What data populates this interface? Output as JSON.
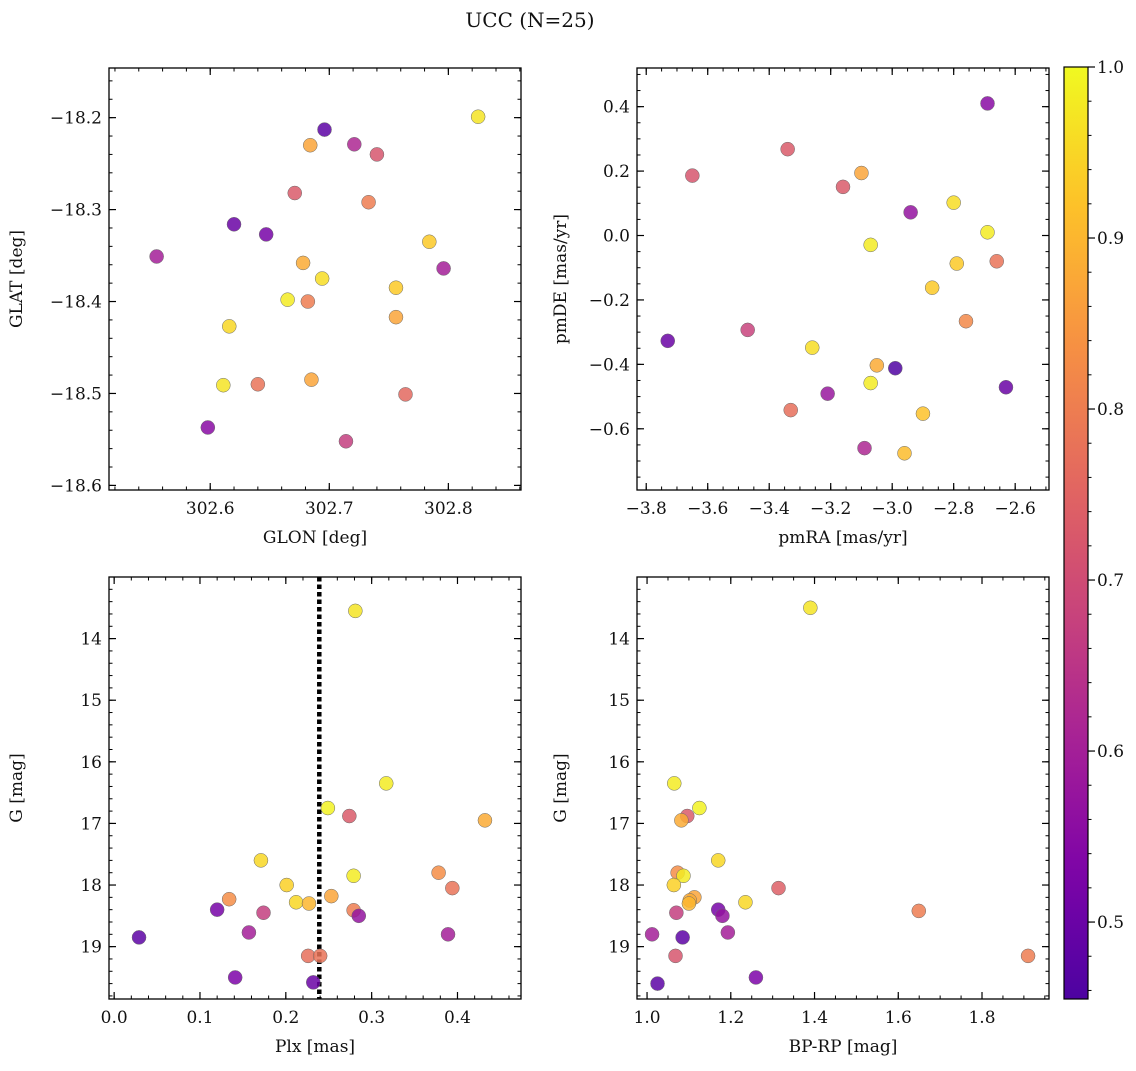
{
  "figure": {
    "title": "UCC (N=25)"
  },
  "colorbar": {
    "min": 0.455,
    "max": 1.0,
    "ticks": [
      0.5,
      0.6,
      0.7,
      0.8,
      0.9,
      1.0
    ],
    "tick_labels": [
      "0.5",
      "0.6",
      "0.7",
      "0.8",
      "0.9",
      "1.0"
    ],
    "colormap": "plasma"
  },
  "chart_data": [
    {
      "id": "glon-glat",
      "type": "scatter",
      "xlabel": "GLON [deg]",
      "ylabel": "GLAT [deg]",
      "xlim": [
        302.515,
        302.861
      ],
      "ylim": [
        -18.605,
        -18.146
      ],
      "xticks": [
        302.6,
        302.7,
        302.8
      ],
      "xtick_labels": [
        "302.6",
        "302.7",
        "302.8"
      ],
      "yticks": [
        -18.6,
        -18.5,
        -18.4,
        -18.3,
        -18.2
      ],
      "ytick_labels": [
        "−18.6",
        "−18.5",
        "−18.4",
        "−18.3",
        "−18.2"
      ],
      "x_minor_step": 0.02,
      "y_minor_step": 0.02,
      "invert_y": false,
      "points": [
        {
          "x": 302.825,
          "y": -18.199,
          "c": 0.97
        },
        {
          "x": 302.696,
          "y": -18.213,
          "c": 0.48
        },
        {
          "x": 302.721,
          "y": -18.229,
          "c": 0.62
        },
        {
          "x": 302.684,
          "y": -18.23,
          "c": 0.87
        },
        {
          "x": 302.74,
          "y": -18.24,
          "c": 0.72
        },
        {
          "x": 302.671,
          "y": -18.282,
          "c": 0.73
        },
        {
          "x": 302.733,
          "y": -18.292,
          "c": 0.8
        },
        {
          "x": 302.62,
          "y": -18.316,
          "c": 0.5
        },
        {
          "x": 302.647,
          "y": -18.327,
          "c": 0.52
        },
        {
          "x": 302.784,
          "y": -18.335,
          "c": 0.93
        },
        {
          "x": 302.555,
          "y": -18.351,
          "c": 0.6
        },
        {
          "x": 302.678,
          "y": -18.358,
          "c": 0.88
        },
        {
          "x": 302.796,
          "y": -18.364,
          "c": 0.6
        },
        {
          "x": 302.694,
          "y": -18.375,
          "c": 0.96
        },
        {
          "x": 302.756,
          "y": -18.385,
          "c": 0.93
        },
        {
          "x": 302.665,
          "y": -18.398,
          "c": 0.98
        },
        {
          "x": 302.682,
          "y": -18.4,
          "c": 0.8
        },
        {
          "x": 302.756,
          "y": -18.417,
          "c": 0.87
        },
        {
          "x": 302.616,
          "y": -18.427,
          "c": 0.95
        },
        {
          "x": 302.685,
          "y": -18.485,
          "c": 0.87
        },
        {
          "x": 302.64,
          "y": -18.49,
          "c": 0.78
        },
        {
          "x": 302.611,
          "y": -18.491,
          "c": 0.97
        },
        {
          "x": 302.764,
          "y": -18.501,
          "c": 0.76
        },
        {
          "x": 302.598,
          "y": -18.537,
          "c": 0.55
        },
        {
          "x": 302.714,
          "y": -18.552,
          "c": 0.67
        }
      ]
    },
    {
      "id": "pmra-pmde",
      "type": "scatter",
      "xlabel": "pmRA [mas/yr]",
      "ylabel": "pmDE [mas/yr]",
      "xlim": [
        -3.83,
        -2.49
      ],
      "ylim": [
        -0.79,
        0.52
      ],
      "xticks": [
        -3.8,
        -3.6,
        -3.4,
        -3.2,
        -3.0,
        -2.8,
        -2.6
      ],
      "xtick_labels": [
        "−3.8",
        "−3.6",
        "−3.4",
        "−3.2",
        "−3.0",
        "−2.8",
        "−2.6"
      ],
      "yticks": [
        -0.6,
        -0.4,
        -0.2,
        0.0,
        0.2,
        0.4
      ],
      "ytick_labels": [
        "−0.6",
        "−0.4",
        "−0.2",
        "0.0",
        "0.2",
        "0.4"
      ],
      "x_minor_step": 0.05,
      "y_minor_step": 0.05,
      "invert_y": false,
      "points": [
        {
          "x": -2.69,
          "y": 0.41,
          "c": 0.55
        },
        {
          "x": -3.34,
          "y": 0.268,
          "c": 0.73
        },
        {
          "x": -3.1,
          "y": 0.194,
          "c": 0.87
        },
        {
          "x": -3.65,
          "y": 0.186,
          "c": 0.72
        },
        {
          "x": -3.16,
          "y": 0.151,
          "c": 0.73
        },
        {
          "x": -2.8,
          "y": 0.102,
          "c": 0.96
        },
        {
          "x": -2.94,
          "y": 0.072,
          "c": 0.57
        },
        {
          "x": -2.69,
          "y": 0.01,
          "c": 0.98
        },
        {
          "x": -3.07,
          "y": -0.029,
          "c": 0.98
        },
        {
          "x": -2.66,
          "y": -0.08,
          "c": 0.78
        },
        {
          "x": -2.79,
          "y": -0.087,
          "c": 0.93
        },
        {
          "x": -2.87,
          "y": -0.162,
          "c": 0.93
        },
        {
          "x": -2.76,
          "y": -0.266,
          "c": 0.82
        },
        {
          "x": -3.47,
          "y": -0.293,
          "c": 0.68
        },
        {
          "x": -3.73,
          "y": -0.327,
          "c": 0.5
        },
        {
          "x": -3.26,
          "y": -0.348,
          "c": 0.96
        },
        {
          "x": -3.05,
          "y": -0.403,
          "c": 0.88
        },
        {
          "x": -2.99,
          "y": -0.412,
          "c": 0.46
        },
        {
          "x": -3.07,
          "y": -0.458,
          "c": 0.98
        },
        {
          "x": -2.63,
          "y": -0.471,
          "c": 0.5
        },
        {
          "x": -3.21,
          "y": -0.491,
          "c": 0.58
        },
        {
          "x": -3.33,
          "y": -0.542,
          "c": 0.77
        },
        {
          "x": -2.9,
          "y": -0.553,
          "c": 0.92
        },
        {
          "x": -3.09,
          "y": -0.66,
          "c": 0.62
        },
        {
          "x": -2.96,
          "y": -0.676,
          "c": 0.91
        }
      ]
    },
    {
      "id": "plx-g",
      "type": "scatter",
      "xlabel": "Plx [mas]",
      "ylabel": "G [mag]",
      "xlim": [
        -0.006,
        0.474
      ],
      "ylim": [
        19.85,
        13.0
      ],
      "xticks": [
        0.0,
        0.1,
        0.2,
        0.3,
        0.4
      ],
      "xtick_labels": [
        "0.0",
        "0.1",
        "0.2",
        "0.3",
        "0.4"
      ],
      "yticks": [
        14,
        15,
        16,
        17,
        18,
        19
      ],
      "ytick_labels": [
        "14",
        "15",
        "16",
        "17",
        "18",
        "19"
      ],
      "x_minor_step": 0.02,
      "y_minor_step": 0.2,
      "invert_y": true,
      "vline": {
        "x": 0.239,
        "style": "dotted"
      },
      "points": [
        {
          "x": 0.281,
          "y": 13.55,
          "c": 0.97
        },
        {
          "x": 0.317,
          "y": 16.35,
          "c": 0.98
        },
        {
          "x": 0.249,
          "y": 16.75,
          "c": 0.99
        },
        {
          "x": 0.274,
          "y": 16.88,
          "c": 0.73
        },
        {
          "x": 0.432,
          "y": 16.95,
          "c": 0.88
        },
        {
          "x": 0.171,
          "y": 17.6,
          "c": 0.95
        },
        {
          "x": 0.378,
          "y": 17.8,
          "c": 0.83
        },
        {
          "x": 0.279,
          "y": 17.85,
          "c": 0.98
        },
        {
          "x": 0.201,
          "y": 18.0,
          "c": 0.94
        },
        {
          "x": 0.394,
          "y": 18.05,
          "c": 0.78
        },
        {
          "x": 0.253,
          "y": 18.18,
          "c": 0.87
        },
        {
          "x": 0.134,
          "y": 18.23,
          "c": 0.83
        },
        {
          "x": 0.212,
          "y": 18.28,
          "c": 0.95
        },
        {
          "x": 0.227,
          "y": 18.3,
          "c": 0.9
        },
        {
          "x": 0.12,
          "y": 18.4,
          "c": 0.52
        },
        {
          "x": 0.279,
          "y": 18.41,
          "c": 0.8
        },
        {
          "x": 0.174,
          "y": 18.45,
          "c": 0.67
        },
        {
          "x": 0.285,
          "y": 18.5,
          "c": 0.57
        },
        {
          "x": 0.157,
          "y": 18.77,
          "c": 0.6
        },
        {
          "x": 0.389,
          "y": 18.8,
          "c": 0.6
        },
        {
          "x": 0.029,
          "y": 18.85,
          "c": 0.48
        },
        {
          "x": 0.226,
          "y": 19.15,
          "c": 0.77
        },
        {
          "x": 0.24,
          "y": 19.15,
          "c": 0.78
        },
        {
          "x": 0.141,
          "y": 19.5,
          "c": 0.53
        },
        {
          "x": 0.232,
          "y": 19.58,
          "c": 0.5
        }
      ]
    },
    {
      "id": "bprp-g",
      "type": "scatter",
      "xlabel": "BP-RP [mag]",
      "ylabel": "G [mag]",
      "xlim": [
        0.976,
        1.96
      ],
      "ylim": [
        19.85,
        13.0
      ],
      "xticks": [
        1.0,
        1.2,
        1.4,
        1.6,
        1.8
      ],
      "xtick_labels": [
        "1.0",
        "1.2",
        "1.4",
        "1.6",
        "1.8"
      ],
      "yticks": [
        14,
        15,
        16,
        17,
        18,
        19
      ],
      "ytick_labels": [
        "14",
        "15",
        "16",
        "17",
        "18",
        "19"
      ],
      "x_minor_step": 0.05,
      "y_minor_step": 0.2,
      "invert_y": true,
      "points": [
        {
          "x": 1.39,
          "y": 13.5,
          "c": 0.97
        },
        {
          "x": 1.065,
          "y": 16.35,
          "c": 0.98
        },
        {
          "x": 1.125,
          "y": 16.75,
          "c": 0.99
        },
        {
          "x": 1.096,
          "y": 16.88,
          "c": 0.73
        },
        {
          "x": 1.082,
          "y": 16.95,
          "c": 0.88
        },
        {
          "x": 1.17,
          "y": 17.6,
          "c": 0.95
        },
        {
          "x": 1.073,
          "y": 17.8,
          "c": 0.83
        },
        {
          "x": 1.087,
          "y": 17.85,
          "c": 0.98
        },
        {
          "x": 1.064,
          "y": 18.0,
          "c": 0.94
        },
        {
          "x": 1.314,
          "y": 18.05,
          "c": 0.74
        },
        {
          "x": 1.113,
          "y": 18.2,
          "c": 0.87
        },
        {
          "x": 1.102,
          "y": 18.25,
          "c": 0.88
        },
        {
          "x": 1.235,
          "y": 18.28,
          "c": 0.95
        },
        {
          "x": 1.1,
          "y": 18.3,
          "c": 0.9
        },
        {
          "x": 1.17,
          "y": 18.4,
          "c": 0.52
        },
        {
          "x": 1.649,
          "y": 18.42,
          "c": 0.8
        },
        {
          "x": 1.07,
          "y": 18.45,
          "c": 0.67
        },
        {
          "x": 1.18,
          "y": 18.5,
          "c": 0.57
        },
        {
          "x": 1.193,
          "y": 18.77,
          "c": 0.6
        },
        {
          "x": 1.012,
          "y": 18.8,
          "c": 0.6
        },
        {
          "x": 1.085,
          "y": 18.85,
          "c": 0.48
        },
        {
          "x": 1.068,
          "y": 19.15,
          "c": 0.72
        },
        {
          "x": 1.91,
          "y": 19.15,
          "c": 0.8
        },
        {
          "x": 1.26,
          "y": 19.5,
          "c": 0.53
        },
        {
          "x": 1.025,
          "y": 19.6,
          "c": 0.48
        }
      ]
    }
  ]
}
